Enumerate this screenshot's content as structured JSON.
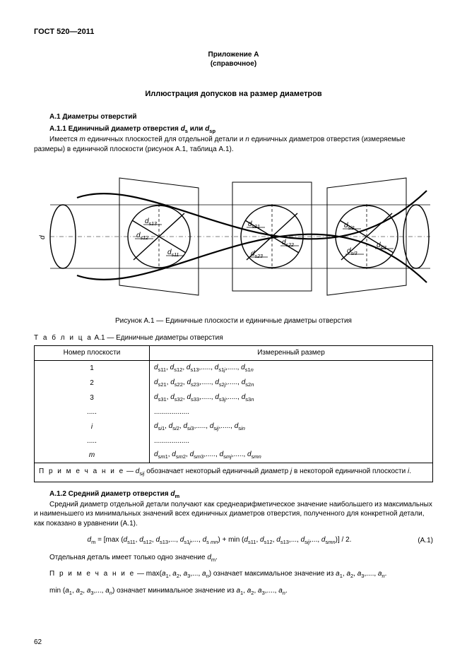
{
  "doc_id": "ГОСТ 520—2011",
  "appendix_label": "Приложение А",
  "appendix_sub": "(справочное)",
  "main_title": "Иллюстрация допусков на размер диаметров",
  "h_a1": "А.1  Диаметры отверстий",
  "h_a11_prefix": "А.1.1  Единичный диаметр отверстия ",
  "h_a11_sym1_base": "d",
  "h_a11_sym1_sub": "s",
  "h_a11_or": " или ",
  "h_a11_sym2_base": "d",
  "h_a11_sym2_sub": "sp",
  "p1_a": "Имеется ",
  "p1_m": "m",
  "p1_b": " единичных плоскостей для отдельной детали и ",
  "p1_n": "n",
  "p1_c": " единичных диаметров отверстия (измеряемые размеры) в единичной плоскости (рисунок А.1, таблица А.1).",
  "figure": {
    "caption": "Рисунок А.1  —  Единичные плоскости и единичные диаметры отверстия",
    "labels": {
      "d": "d",
      "d_s11": "d",
      "d_s11_sub": "s11",
      "d_s12": "d",
      "d_s12_sub": "s12",
      "d_s13": "d",
      "d_s13_sub": "s13",
      "d_s21": "d",
      "d_s21_sub": "s21",
      "d_s22": "d",
      "d_s22_sub": "s22",
      "d_s23": "d",
      "d_s23_sub": "s23",
      "d_si1": "d",
      "d_si1_sub": "si1",
      "d_si2": "d",
      "d_si2_sub": "si2",
      "d_si3": "d",
      "d_si3_sub": "si3"
    },
    "style": {
      "stroke": "#000000",
      "stroke_width_main": 1.0,
      "stroke_width_heavy": 1.6,
      "background": "#ffffff"
    }
  },
  "table": {
    "title_prefix": "Т а б л и ц а",
    "title_rest": "  А.1 — Единичные диаметры отверстия",
    "headers": [
      "Номер плоскости",
      "Измеренный размер"
    ],
    "rows": [
      {
        "plane": "1",
        "val_html": "<span class='it'>d</span><sub>s11</sub>, <span class='it'>d</span><sub>s12</sub>, <span class='it'>d</span><sub>s13</sub>,....., <span class='it'>d</span><sub>s1<span class='it'>j</span></sub>,....., <span class='it'>d</span><sub>s1<span class='it'>n</span></sub>"
      },
      {
        "plane": "2",
        "val_html": "<span class='it'>d</span><sub>s21</sub>, <span class='it'>d</span><sub>s22</sub>, <span class='it'>d</span><sub>s23</sub>,....., <span class='it'>d</span><sub>s2<span class='it'>j</span></sub>,....., <span class='it'>d</span><sub>s2<span class='it'>n</span></sub>"
      },
      {
        "plane": "3",
        "val_html": "<span class='it'>d</span><sub>s31</sub>, <span class='it'>d</span><sub>s32</sub>, <span class='it'>d</span><sub>s33</sub>,....., <span class='it'>d</span><sub>s3<span class='it'>j</span></sub>,....., <span class='it'>d</span><sub>s3<span class='it'>n</span></sub>"
      },
      {
        "plane": ".....",
        "val_html": ".................."
      },
      {
        "plane_html": "<span class='it'>i</span>",
        "val_html": "<span class='it'>d</span><sub>s<span class='it'>i</span>1</sub>, <span class='it'>d</span><sub>s<span class='it'>i</span>2</sub>, <span class='it'>d</span><sub>s<span class='it'>i</span>3</sub>,....., <span class='it'>d</span><sub>s<span class='it'>ij</span></sub>,....., <span class='it'>d</span><sub>s<span class='it'>in</span></sub>"
      },
      {
        "plane": ".....",
        "val_html": ".................."
      },
      {
        "plane_html": "<span class='it'>m</span>",
        "val_html": "<span class='it'>d</span><sub>s<span class='it'>m</span>1</sub>, <span class='it'>d</span><sub>s<span class='it'>m</span>2</sub>, <span class='it'>d</span><sub>s<span class='it'>m</span>3</sub>,....., <span class='it'>d</span><sub>s<span class='it'>mj</span></sub>,....., <span class='it'>d</span><sub>s<span class='it'>mn</span></sub>"
      }
    ],
    "note_html": "<span class='note-sp'>П р и м е ч а н и е</span> — <span class='it'>d</span><sub>s<span class='it'>ij</span></sub> обозначает некоторый единичный диаметр <span class='it'>j</span> в некоторой единичной плоскости <span class='it'>i</span>."
  },
  "h_a12_prefix": "А.1.2  Средний диаметр отверстия ",
  "h_a12_sym_base": "d",
  "h_a12_sym_sub": "m",
  "p2": "Средний диаметр отдельной детали получают как среднеарифметическое значение наибольшего из максимальных и наименьшего из минимальных значений всех единичных диаметров отверстия, полученного для конкретной детали, как показано в уравнении (А.1).",
  "equation_html": "<span class='it'>d</span><sub>m</sub> = [max (<span class='it'>d</span><sub>s11</sub>, <span class='it'>d</span><sub>s12</sub>, <span class='it'>d</span><sub>s13</sub>,..., <span class='it'>d</span><sub>s1<span class='it'>j</span></sub>,..., <span class='it'>d</span><sub>s&nbsp;<span class='it'>mn</span></sub>) + min (<span class='it'>d</span><sub>s11</sub>, <span class='it'>d</span><sub>s12</sub>, <span class='it'>d</span><sub>s13</sub>,..., <span class='it'>d</span><sub>s<span class='it'>ij</span></sub>,..., <span class='it'>d</span><sub>s<span class='it'>mn</span></sub>)] / 2.",
  "equation_num": "(А.1)",
  "p3_html": "Отдельная деталь имеет только одно значение <span class='it'>d</span><sub>m</sub>.",
  "p4_html": "<span class='note-sp'>П р и м е ч а н и е</span> — max(<span class='it'>a</span><sub>1</sub>, <span class='it'>a</span><sub>2</sub>, <span class='it'>a</span><sub>3</sub>,..., <span class='it'>a</span><sub><span class='it'>n</span></sub>) означает максимальное значение из <span class='it'>a</span><sub>1</sub>, <span class='it'>a</span><sub>2</sub>, <span class='it'>a</span><sub>3</sub>,...., <span class='it'>a</span><sub><span class='it'>n</span></sub>.",
  "p5_html": "min (<span class='it'>a</span><sub>1</sub>, <span class='it'>a</span><sub>2</sub>, <span class='it'>a</span><sub>3</sub>,..., <span class='it'>a</span><sub><span class='it'>n</span></sub>) означает минимальное значение из <span class='it'>a</span><sub>1</sub>, <span class='it'>a</span><sub>2</sub>, <span class='it'>a</span><sub>3</sub>,...., <span class='it'>a</span><sub><span class='it'>n</span></sub>.",
  "page_number": "62"
}
